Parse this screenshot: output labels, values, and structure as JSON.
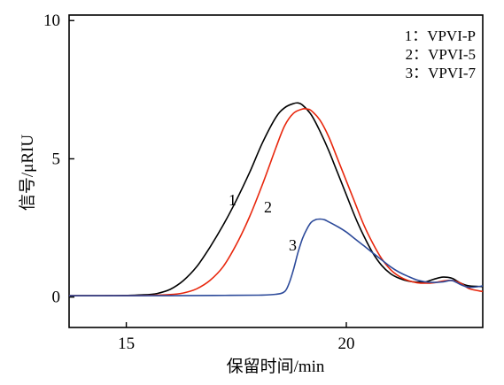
{
  "chart_data": {
    "type": "line",
    "title": "",
    "xlabel": "保留时间/min",
    "ylabel": "信号/μRIU",
    "xlim": [
      13.7,
      23.1
    ],
    "ylim": [
      -1.1,
      10.2
    ],
    "xticks": [
      15,
      20
    ],
    "yticks": [
      0,
      5,
      10
    ],
    "legend": {
      "placement": "top-right"
    },
    "series": [
      {
        "name": "1：VPVI-P",
        "label": "1",
        "color": "#000000",
        "x": [
          13.7,
          14.5,
          15.0,
          15.4,
          15.7,
          16.0,
          16.3,
          16.6,
          16.9,
          17.2,
          17.5,
          17.8,
          18.1,
          18.4,
          18.6,
          18.8,
          18.9,
          19.0,
          19.2,
          19.4,
          19.6,
          19.8,
          20.0,
          20.2,
          20.4,
          20.6,
          20.8,
          21.0,
          21.2,
          21.4,
          21.6,
          21.8,
          22.0,
          22.2,
          22.4,
          22.6,
          22.8,
          23.1
        ],
        "y": [
          0.05,
          0.05,
          0.06,
          0.08,
          0.13,
          0.28,
          0.6,
          1.1,
          1.8,
          2.6,
          3.5,
          4.5,
          5.6,
          6.5,
          6.85,
          7.0,
          7.02,
          6.95,
          6.6,
          6.0,
          5.3,
          4.5,
          3.7,
          2.9,
          2.2,
          1.6,
          1.15,
          0.85,
          0.68,
          0.58,
          0.54,
          0.55,
          0.65,
          0.72,
          0.68,
          0.5,
          0.4,
          0.38
        ]
      },
      {
        "name": "2：VPVI-5",
        "label": "2",
        "color": "#e8270d",
        "x": [
          13.7,
          14.5,
          15.0,
          15.5,
          16.0,
          16.3,
          16.6,
          16.9,
          17.2,
          17.5,
          17.8,
          18.1,
          18.4,
          18.6,
          18.8,
          19.0,
          19.1,
          19.2,
          19.4,
          19.6,
          19.8,
          20.0,
          20.2,
          20.4,
          20.6,
          20.8,
          21.0,
          21.2,
          21.4,
          21.6,
          21.8,
          22.0,
          22.2,
          22.4,
          22.6,
          22.8,
          23.1
        ],
        "y": [
          0.05,
          0.05,
          0.05,
          0.06,
          0.09,
          0.15,
          0.3,
          0.6,
          1.1,
          1.9,
          2.9,
          4.1,
          5.4,
          6.2,
          6.65,
          6.8,
          6.8,
          6.75,
          6.4,
          5.8,
          5.0,
          4.2,
          3.4,
          2.6,
          1.95,
          1.4,
          1.0,
          0.75,
          0.6,
          0.52,
          0.5,
          0.52,
          0.58,
          0.6,
          0.5,
          0.3,
          0.2
        ]
      },
      {
        "name": "3：VPVI-7",
        "label": "3",
        "color": "#2c4a9a",
        "x": [
          13.7,
          15.0,
          16.0,
          17.0,
          18.0,
          18.4,
          18.6,
          18.7,
          18.8,
          18.9,
          19.0,
          19.1,
          19.2,
          19.3,
          19.4,
          19.5,
          19.6,
          19.8,
          20.0,
          20.2,
          20.4,
          20.6,
          20.8,
          21.0,
          21.2,
          21.4,
          21.6,
          21.8,
          22.0,
          22.2,
          22.4,
          22.6,
          22.8,
          23.1
        ],
        "y": [
          0.05,
          0.05,
          0.05,
          0.06,
          0.07,
          0.1,
          0.2,
          0.5,
          1.0,
          1.6,
          2.1,
          2.45,
          2.7,
          2.8,
          2.82,
          2.8,
          2.72,
          2.55,
          2.35,
          2.1,
          1.85,
          1.6,
          1.35,
          1.1,
          0.9,
          0.75,
          0.62,
          0.55,
          0.53,
          0.55,
          0.6,
          0.45,
          0.35,
          0.4
        ]
      }
    ]
  }
}
